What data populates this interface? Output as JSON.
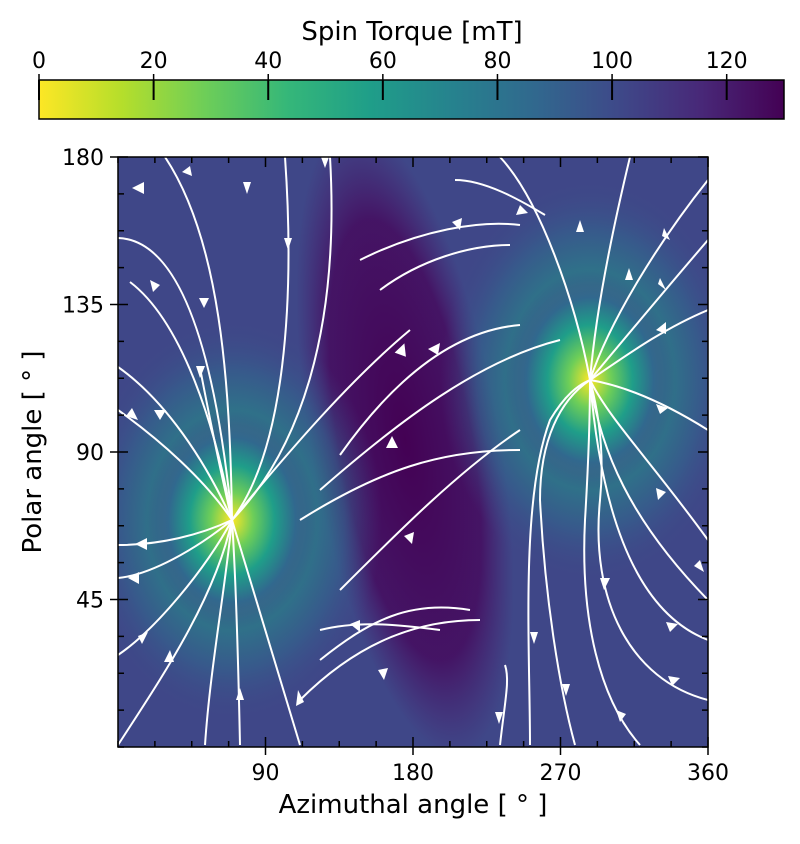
{
  "chart_data": {
    "type": "heatmap",
    "subtype": "contour with streamlines",
    "colorbar": {
      "label": "Spin Torque [mT]",
      "min": 0,
      "max": 130,
      "ticks": [
        0,
        20,
        40,
        60,
        80,
        100,
        120
      ],
      "tick_labels": [
        "0",
        "20",
        "40",
        "60",
        "80",
        "100",
        "120"
      ],
      "colormap": "viridis_r",
      "stops": [
        "#fde725",
        "#b5de2b",
        "#6ece58",
        "#35b779",
        "#1f9e89",
        "#26828e",
        "#31688e",
        "#3e4989",
        "#482878",
        "#440154"
      ]
    },
    "xlabel": "Azimuthal angle [ ° ]",
    "ylabel": "Polar angle [ ° ]",
    "xlim": [
      0,
      360
    ],
    "ylim": [
      0,
      180
    ],
    "xticks": [
      90,
      180,
      270,
      360
    ],
    "xtick_labels": [
      "90",
      "180",
      "270",
      "360"
    ],
    "yticks": [
      45,
      90,
      135,
      180
    ],
    "ytick_labels": [
      "45",
      "90",
      "135",
      "180"
    ],
    "minima": [
      {
        "azimuth": 70,
        "polar": 68,
        "value": 0
      },
      {
        "azimuth": 290,
        "polar": 112,
        "value": 0
      }
    ],
    "maximum_region": {
      "azimuth": 180,
      "polar_range": [
        20,
        160
      ],
      "value": 130
    },
    "background_value": 105,
    "streamlines": "white, converging on the two minima"
  }
}
